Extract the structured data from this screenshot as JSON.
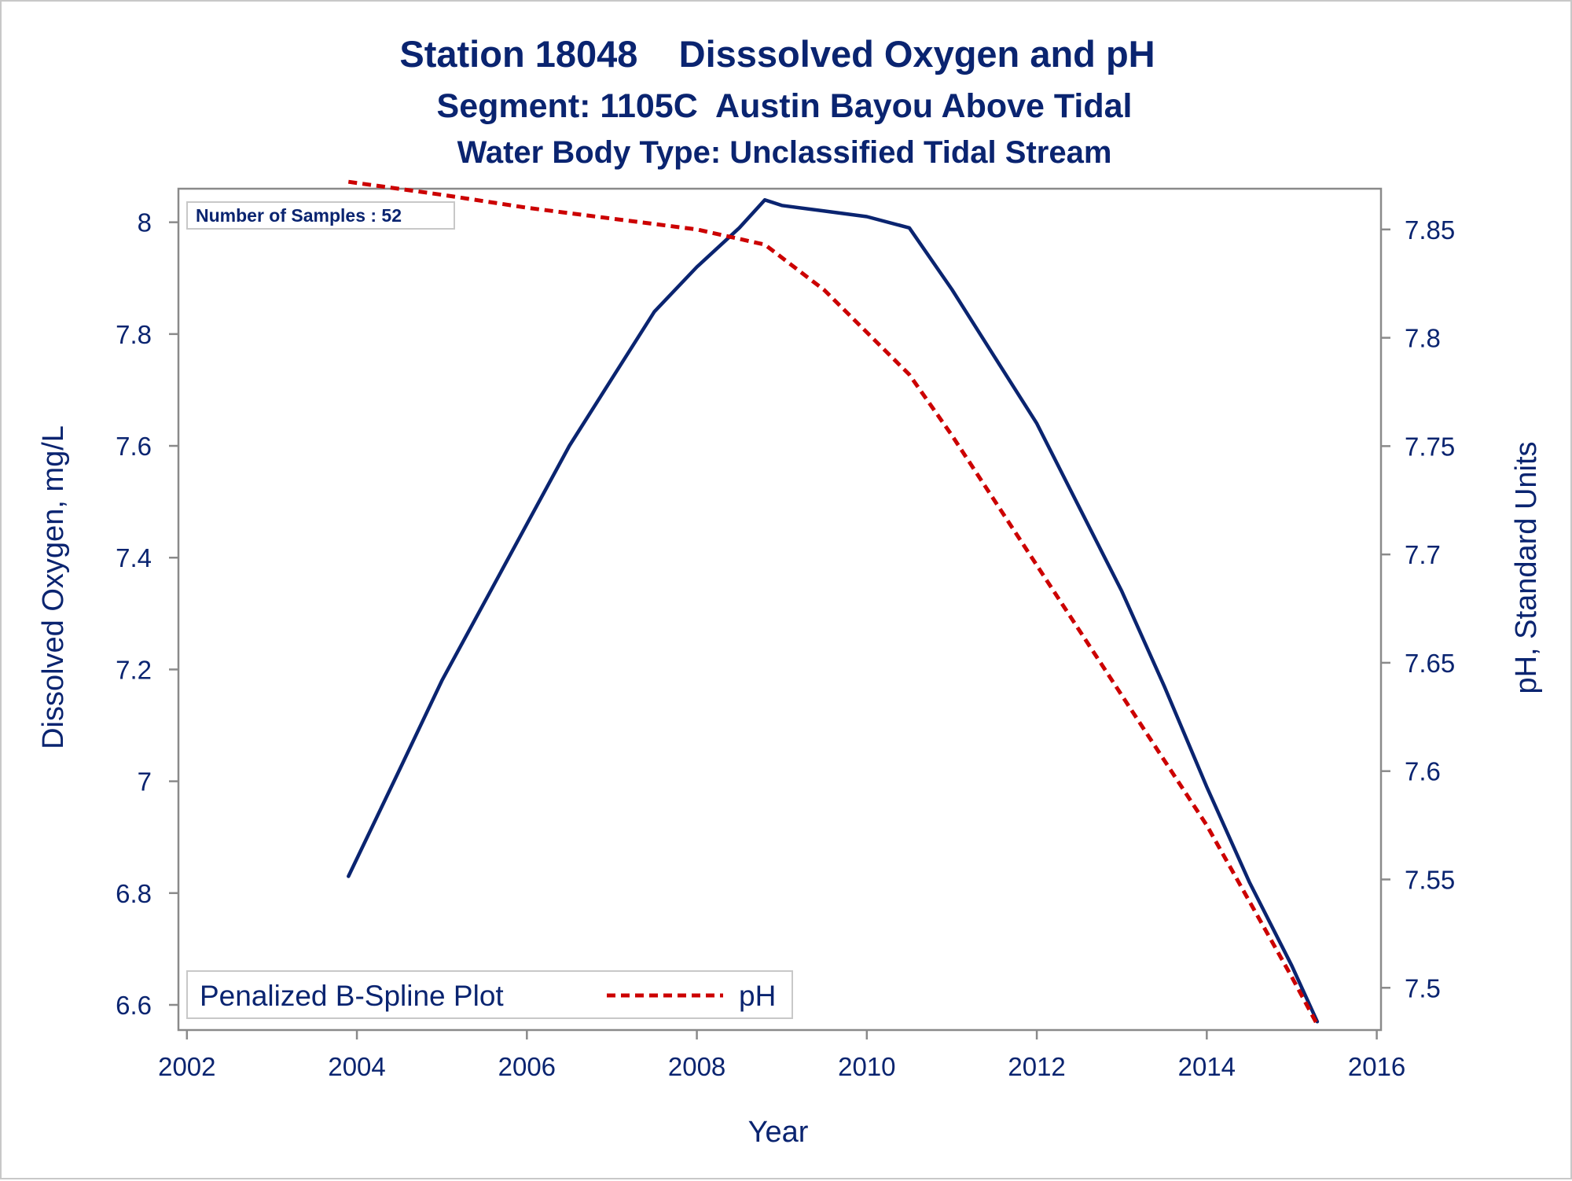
{
  "chart_data": {
    "type": "line",
    "title": "Station 18048    Disssolved Oxygen and pH",
    "subtitle": "Segment: 1105C  Austin Bayou Above Tidal",
    "subtitle2": "Water Body Type: Unclassified Tidal Stream",
    "xlabel": "Year",
    "ylabel": "Dissolved Oxygen, mg/L",
    "y2label": "pH, Standard Units",
    "xlim": [
      2001.9,
      2016.05
    ],
    "ylim": [
      6.555,
      8.06
    ],
    "y2lim": [
      7.4805,
      7.8688
    ],
    "x_ticks": [
      "2002",
      "2004",
      "2006",
      "2008",
      "2010",
      "2012",
      "2014",
      "2016"
    ],
    "y_ticks": [
      "6.6",
      "6.8",
      "7",
      "7.2",
      "7.4",
      "7.6",
      "7.8",
      "8"
    ],
    "y2_ticks": [
      "7.5",
      "7.55",
      "7.6",
      "7.65",
      "7.7",
      "7.75",
      "7.8",
      "7.85"
    ],
    "grid": false,
    "inset_text": "Number of Samples : 52",
    "legend": {
      "title": "Penalized B-Spline Plot",
      "placement": "bottom-left",
      "entries": [
        "pH"
      ]
    },
    "series": [
      {
        "axis": "left",
        "color": "#0a2470",
        "style": "solid",
        "x": [
          2003.9,
          2004.5,
          2005.0,
          2005.5,
          2006.0,
          2006.5,
          2007.0,
          2007.5,
          2008.0,
          2008.5,
          2008.8,
          2009.0,
          2009.5,
          2010.0,
          2010.5,
          2011.0,
          2011.5,
          2012.0,
          2012.5,
          2013.0,
          2013.5,
          2014.0,
          2014.5,
          2015.0,
          2015.3
        ],
        "y": [
          6.83,
          7.02,
          7.18,
          7.32,
          7.46,
          7.6,
          7.72,
          7.84,
          7.92,
          7.99,
          8.04,
          8.03,
          8.02,
          8.01,
          7.99,
          7.88,
          7.76,
          7.64,
          7.49,
          7.34,
          7.17,
          6.99,
          6.82,
          6.67,
          6.57
        ]
      },
      {
        "name": "pH",
        "axis": "right",
        "color": "#cc0000",
        "style": "dashed",
        "x": [
          2003.9,
          2005.0,
          2006.0,
          2007.0,
          2008.0,
          2008.8,
          2009.5,
          2010.5,
          2011.0,
          2012.0,
          2013.0,
          2014.0,
          2015.0,
          2015.3
        ],
        "y": [
          7.872,
          7.866,
          7.86,
          7.855,
          7.85,
          7.843,
          7.822,
          7.783,
          7.755,
          7.695,
          7.635,
          7.575,
          7.505,
          7.483
        ]
      }
    ]
  }
}
